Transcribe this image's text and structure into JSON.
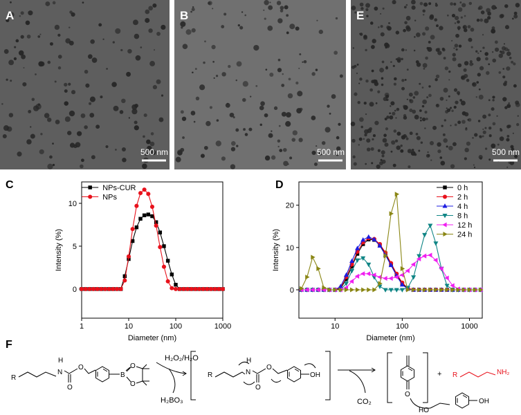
{
  "images": [
    {
      "label": "A",
      "scale_bar": "500 nm"
    },
    {
      "label": "B",
      "scale_bar": "500 nm"
    },
    {
      "label": "E",
      "scale_bar": "500 nm"
    }
  ],
  "chart_data": [
    {
      "type": "line",
      "panel_label": "C",
      "xlabel": "Diameter (nm)",
      "ylabel": "Intensity (%)",
      "xscale": "log",
      "xlim": [
        1,
        1000
      ],
      "xticks": [
        1,
        10,
        100,
        1000
      ],
      "ylim": [
        -3.4,
        12.5
      ],
      "yticks": [
        0,
        5,
        10
      ],
      "legend": "upper left",
      "x": [
        1,
        1.21,
        1.47,
        1.78,
        2.15,
        2.61,
        3.16,
        3.83,
        4.64,
        5.62,
        6.81,
        8.25,
        10,
        12.1,
        14.7,
        17.8,
        21.5,
        26.1,
        31.6,
        38.3,
        46.4,
        56.2,
        68.1,
        82.5,
        100,
        121,
        147,
        178,
        215,
        261,
        316,
        383,
        464,
        562,
        681,
        825,
        1000
      ],
      "series": [
        {
          "name": "NPs-CUR",
          "color": "#000000",
          "marker": "square",
          "values": [
            0,
            0,
            0,
            0,
            0,
            0,
            0,
            0,
            0,
            0,
            0,
            1.5,
            3.5,
            5.6,
            7.2,
            8.2,
            8.6,
            8.7,
            8.5,
            7.8,
            6.6,
            5.0,
            3.3,
            1.7,
            0.5,
            0,
            0,
            0,
            0,
            0,
            0,
            0,
            0,
            0,
            0,
            0,
            0
          ]
        },
        {
          "name": "NPs",
          "color": "#e8111b",
          "marker": "circle",
          "values": [
            0,
            0,
            0,
            0,
            0,
            0,
            0,
            0,
            0,
            0,
            0,
            1.0,
            3.8,
            7.0,
            9.7,
            11.2,
            11.6,
            11.1,
            9.6,
            7.4,
            4.9,
            2.6,
            0.9,
            0.1,
            0,
            0,
            0,
            0,
            0,
            0,
            0,
            0,
            0,
            0,
            0,
            0,
            0
          ]
        }
      ]
    },
    {
      "type": "line",
      "panel_label": "D",
      "xlabel": "Diameter (nm)",
      "ylabel": "Intensity (%)",
      "xscale": "log",
      "xlim": [
        2.9,
        1550
      ],
      "xticks": [
        10,
        100,
        1000
      ],
      "ylim": [
        -6.7,
        25.5
      ],
      "yticks": [
        0,
        10,
        20
      ],
      "legend": "upper right",
      "x": [
        3.16,
        3.83,
        4.64,
        5.62,
        6.81,
        8.25,
        10,
        12.1,
        14.7,
        17.8,
        21.5,
        26.1,
        31.6,
        38.3,
        46.4,
        56.2,
        68.1,
        82.5,
        100,
        121,
        147,
        178,
        215,
        261,
        316,
        383,
        464,
        562,
        681,
        825,
        1000,
        1210,
        1470
      ],
      "series": [
        {
          "name": "0 h",
          "color": "#000000",
          "marker": "square",
          "values": [
            0,
            0,
            0,
            0,
            0,
            0,
            0,
            0.3,
            2.5,
            5.5,
            8.5,
            10.8,
            11.9,
            11.8,
            10.6,
            8.5,
            6,
            3.5,
            1.5,
            0.3,
            0,
            0,
            0,
            0,
            0,
            0,
            0,
            0,
            0,
            0,
            0,
            0,
            0
          ]
        },
        {
          "name": "2 h",
          "color": "#e8111b",
          "marker": "circle",
          "values": [
            0,
            0,
            0,
            0,
            0,
            0,
            0,
            0.5,
            3,
            6,
            9,
            11.2,
            12.2,
            12,
            10.8,
            8.8,
            6.3,
            3.8,
            1.7,
            0.4,
            0,
            0,
            0,
            0,
            0,
            0,
            0,
            0,
            0,
            0,
            0,
            0,
            0
          ]
        },
        {
          "name": "4 h",
          "color": "#1c1ce0",
          "marker": "triangle-up",
          "values": [
            0,
            0,
            0,
            0,
            0,
            0,
            0,
            0.8,
            3.5,
            6.8,
            9.8,
            11.8,
            12.5,
            11.9,
            10.4,
            8.2,
            5.8,
            3.3,
            1.2,
            0.2,
            0,
            0,
            0,
            0,
            0,
            0,
            0,
            0,
            0,
            0,
            0,
            0,
            0
          ]
        },
        {
          "name": "8 h",
          "color": "#0f8585",
          "marker": "triangle-down",
          "values": [
            0,
            0,
            0,
            0,
            0,
            0,
            0,
            0,
            1.5,
            4.5,
            7,
            7.5,
            6,
            3,
            0.8,
            0,
            0,
            0,
            0,
            0.5,
            3,
            8,
            13,
            15.2,
            11,
            5,
            1,
            0,
            0,
            0,
            0,
            0,
            0
          ]
        },
        {
          "name": "12 h",
          "color": "#f01ff0",
          "marker": "triangle-left",
          "values": [
            0,
            0,
            0,
            0,
            0,
            0,
            0,
            0,
            0.5,
            2,
            3.2,
            3.8,
            3.8,
            3.5,
            3,
            2.7,
            2.7,
            3,
            3.5,
            4.5,
            6,
            7.3,
            8,
            8.2,
            7,
            5,
            2.8,
            1,
            0.2,
            0,
            0,
            0,
            0
          ]
        },
        {
          "name": "24 h",
          "color": "#8a8614",
          "marker": "triangle-right",
          "values": [
            0.3,
            3,
            7.7,
            5,
            0.5,
            0,
            0,
            0,
            0,
            0,
            0,
            0,
            0,
            0,
            1.5,
            8,
            18,
            22.6,
            5,
            0,
            0,
            0,
            0,
            0,
            0,
            0,
            0,
            0,
            0,
            0,
            0,
            0,
            0
          ]
        }
      ]
    }
  ],
  "scheme": {
    "label": "F",
    "reagent": "H₂O₂/H₂O",
    "byproduct_1": "H₂BO₃",
    "byproduct_2": "CO₂",
    "plus": "+",
    "atoms": [
      "R",
      "H",
      "N",
      "O",
      "O",
      "B",
      "O",
      "O",
      "R",
      "H",
      "N",
      "O",
      "O",
      "OH",
      "O",
      "R",
      "NH₂",
      "HO",
      "OH"
    ]
  }
}
